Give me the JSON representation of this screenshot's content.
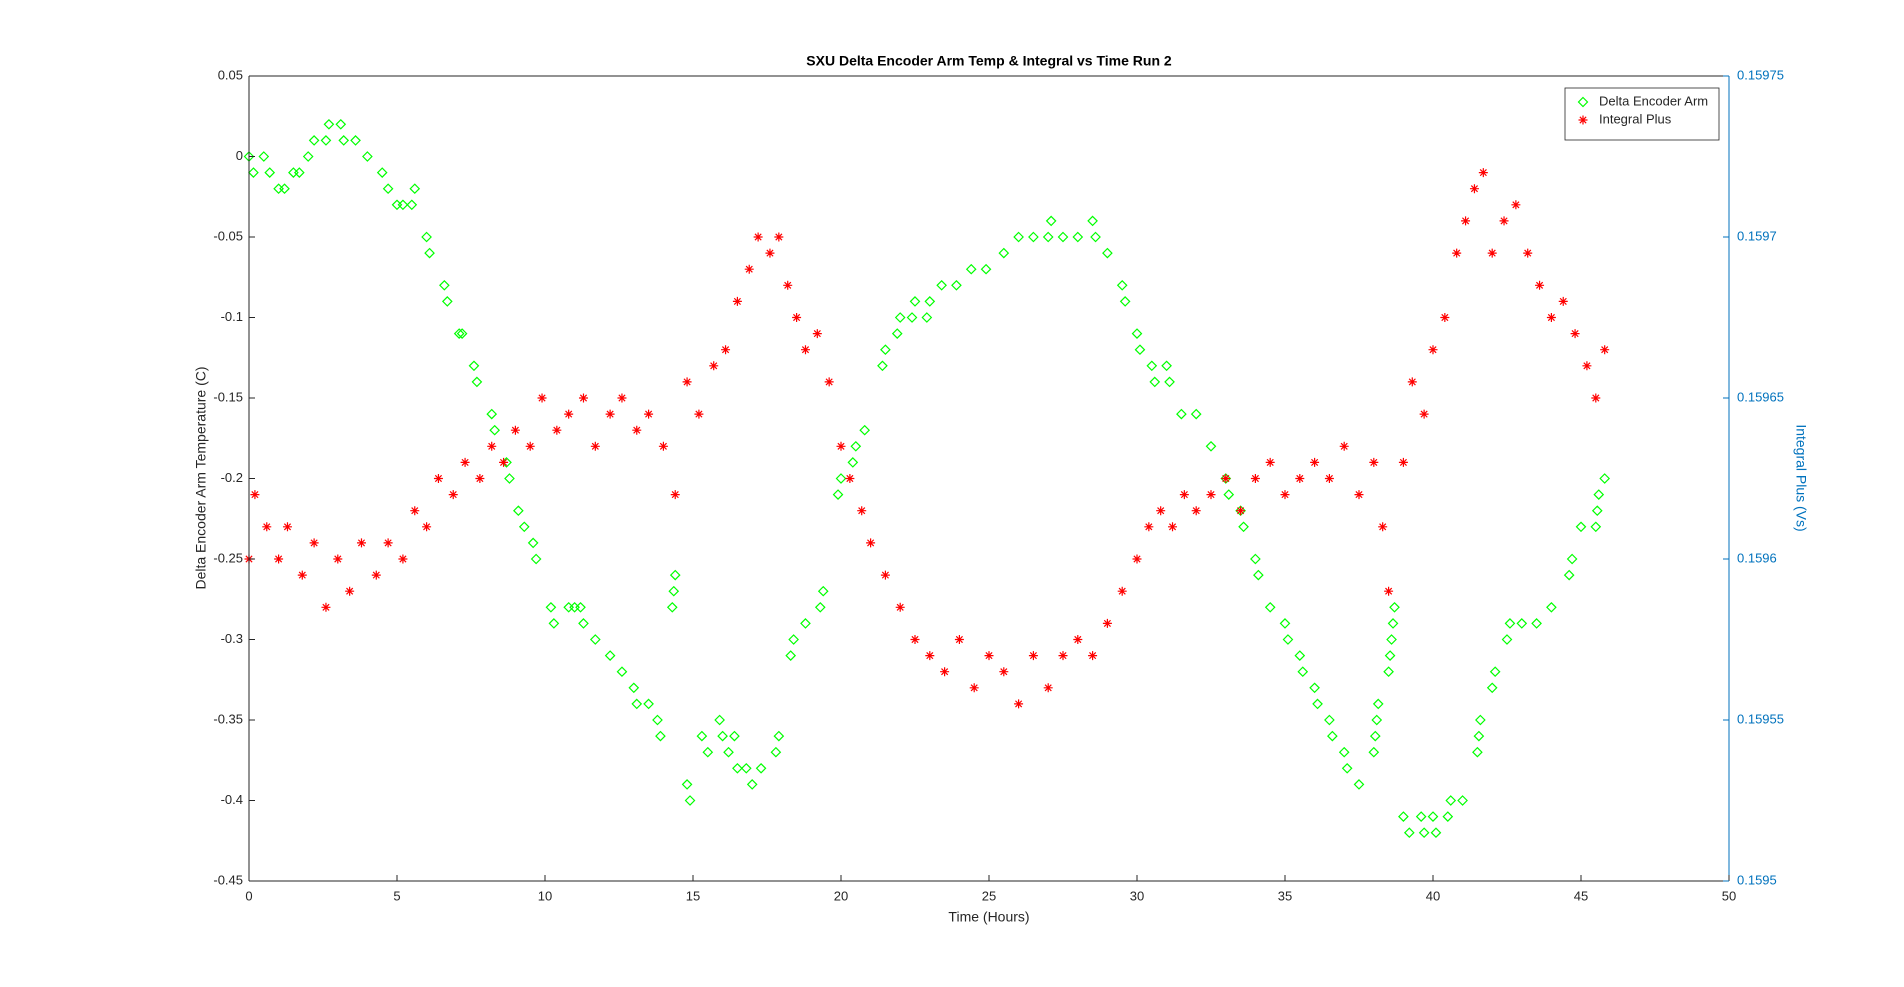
{
  "chart_data": {
    "type": "scatter",
    "title": "SXU Delta Encoder Arm Temp & Integral vs Time Run 2",
    "x_label": "Time (Hours)",
    "y_label": "Delta Encoder Arm Temperature (C)",
    "y2_label": "Integral Plus (Vs)",
    "xlim": [
      0,
      50
    ],
    "xticks": [
      0,
      5,
      10,
      15,
      20,
      25,
      30,
      35,
      40,
      45,
      50
    ],
    "ylim": [
      -0.45,
      0.05
    ],
    "yticks": [
      -0.45,
      -0.4,
      -0.35,
      -0.3,
      -0.25,
      -0.2,
      -0.15,
      -0.1,
      -0.05,
      0,
      0.05
    ],
    "y2lim": [
      0.1595,
      0.15975
    ],
    "y2ticks": [
      0.1595,
      0.15955,
      0.1596,
      0.15965,
      0.1597,
      0.15975
    ],
    "y2_color": "#0072bd",
    "legend": "northeast",
    "series": [
      {
        "name": "Delta Encoder Arm",
        "color": "#00ff00",
        "marker": "diamond",
        "x": [
          0,
          0.15,
          0.5,
          0.7,
          1,
          1.2,
          1.5,
          1.7,
          2,
          2.2,
          2.6,
          2.7,
          3.1,
          3.2,
          3.6,
          4,
          4.5,
          4.7,
          5,
          5.2,
          5.5,
          5.6,
          6,
          6.1,
          6.6,
          6.7,
          7.1,
          7.2,
          7.6,
          7.7,
          8.2,
          8.3,
          8.7,
          8.8,
          9.1,
          9.3,
          9.6,
          9.7,
          10.2,
          10.3,
          10.8,
          11,
          11.2,
          11.3,
          11.7,
          12.2,
          12.6,
          13,
          13.1,
          13.5,
          13.8,
          13.9,
          14.3,
          14.35,
          14.4,
          14.8,
          14.9,
          15.3,
          15.5,
          15.9,
          16,
          16.2,
          16.4,
          16.5,
          16.8,
          17,
          17.3,
          17.8,
          17.9,
          18.3,
          18.4,
          18.8,
          19.3,
          19.4,
          19.9,
          20,
          20.4,
          20.5,
          20.8,
          21.4,
          21.5,
          21.9,
          22,
          22.4,
          22.5,
          22.9,
          23,
          23.4,
          23.9,
          24.4,
          24.9,
          25.5,
          26,
          26.5,
          27,
          27.1,
          27.5,
          28,
          28.5,
          28.6,
          29,
          29.5,
          29.6,
          30,
          30.1,
          30.5,
          30.6,
          31,
          31.1,
          31.5,
          32,
          32.5,
          33,
          33.1,
          33.5,
          33.6,
          34,
          34.1,
          34.5,
          35,
          35.1,
          35.5,
          35.6,
          36,
          36.1,
          36.5,
          36.6,
          37,
          37.1,
          37.5,
          38,
          38.05,
          38.1,
          38.15,
          38.5,
          38.55,
          38.6,
          38.65,
          38.7,
          39,
          39.2,
          39.6,
          39.7,
          40,
          40.1,
          40.5,
          40.6,
          41,
          41.5,
          41.55,
          41.6,
          42,
          42.1,
          42.5,
          42.6,
          43,
          43.5,
          44,
          44.6,
          44.7,
          45,
          45.5,
          45.55,
          45.6,
          45.8
        ],
        "values": [
          0,
          -0.01,
          0,
          -0.01,
          -0.02,
          -0.02,
          -0.01,
          -0.01,
          0,
          0.01,
          0.01,
          0.02,
          0.02,
          0.01,
          0.01,
          0,
          -0.01,
          -0.02,
          -0.03,
          -0.03,
          -0.03,
          -0.02,
          -0.05,
          -0.06,
          -0.08,
          -0.09,
          -0.11,
          -0.11,
          -0.13,
          -0.14,
          -0.16,
          -0.17,
          -0.19,
          -0.2,
          -0.22,
          -0.23,
          -0.24,
          -0.25,
          -0.28,
          -0.29,
          -0.28,
          -0.28,
          -0.28,
          -0.29,
          -0.3,
          -0.31,
          -0.32,
          -0.33,
          -0.34,
          -0.34,
          -0.35,
          -0.36,
          -0.28,
          -0.27,
          -0.26,
          -0.39,
          -0.4,
          -0.36,
          -0.37,
          -0.35,
          -0.36,
          -0.37,
          -0.36,
          -0.38,
          -0.38,
          -0.39,
          -0.38,
          -0.37,
          -0.36,
          -0.31,
          -0.3,
          -0.29,
          -0.28,
          -0.27,
          -0.21,
          -0.2,
          -0.19,
          -0.18,
          -0.17,
          -0.13,
          -0.12,
          -0.11,
          -0.1,
          -0.1,
          -0.09,
          -0.1,
          -0.09,
          -0.08,
          -0.08,
          -0.07,
          -0.07,
          -0.06,
          -0.05,
          -0.05,
          -0.05,
          -0.04,
          -0.05,
          -0.05,
          -0.04,
          -0.05,
          -0.06,
          -0.08,
          -0.09,
          -0.11,
          -0.12,
          -0.13,
          -0.14,
          -0.13,
          -0.14,
          -0.16,
          -0.16,
          -0.18,
          -0.2,
          -0.21,
          -0.22,
          -0.23,
          -0.25,
          -0.26,
          -0.28,
          -0.29,
          -0.3,
          -0.31,
          -0.32,
          -0.33,
          -0.34,
          -0.35,
          -0.36,
          -0.37,
          -0.38,
          -0.39,
          -0.37,
          -0.36,
          -0.35,
          -0.34,
          -0.32,
          -0.31,
          -0.3,
          -0.29,
          -0.28,
          -0.41,
          -0.42,
          -0.41,
          -0.42,
          -0.41,
          -0.42,
          -0.41,
          -0.4,
          -0.4,
          -0.37,
          -0.36,
          -0.35,
          -0.33,
          -0.32,
          -0.3,
          -0.29,
          -0.29,
          -0.29,
          -0.28,
          -0.26,
          -0.25,
          -0.23,
          -0.23,
          -0.22,
          -0.21,
          -0.2
        ]
      },
      {
        "name": "Integral Plus",
        "color": "#ff0000",
        "marker": "asterisk",
        "axis": "y2",
        "x": [
          0,
          0.2,
          0.6,
          1,
          1.3,
          1.8,
          2.2,
          2.6,
          3,
          3.4,
          3.8,
          4.3,
          4.7,
          5.2,
          5.6,
          6,
          6.4,
          6.9,
          7.3,
          7.8,
          8.2,
          8.6,
          9,
          9.5,
          9.9,
          10.4,
          10.8,
          11.3,
          11.7,
          12.2,
          12.6,
          13.1,
          13.5,
          14,
          14.4,
          14.8,
          15.2,
          15.7,
          16.1,
          16.5,
          16.9,
          17.2,
          17.6,
          17.9,
          18.2,
          18.5,
          18.8,
          19.2,
          19.6,
          20,
          20.3,
          20.7,
          21,
          21.5,
          22,
          22.5,
          23,
          23.5,
          24,
          24.5,
          25,
          25.5,
          26,
          26.5,
          27,
          27.5,
          28,
          28.5,
          29,
          29.5,
          30,
          30.4,
          30.8,
          31.2,
          31.6,
          32,
          32.5,
          33,
          33.5,
          34,
          34.5,
          35,
          35.5,
          36,
          36.5,
          37,
          37.5,
          38,
          38.3,
          38.5,
          39,
          39.3,
          39.7,
          40,
          40.4,
          40.8,
          41.1,
          41.4,
          41.7,
          42,
          42.4,
          42.8,
          43.2,
          43.6,
          44,
          44.4,
          44.8,
          45.2,
          45.5,
          45.8
        ],
        "values": [
          0.1596,
          0.15962,
          0.15961,
          0.1596,
          0.15961,
          0.159595,
          0.159605,
          0.159585,
          0.1596,
          0.15959,
          0.159605,
          0.159595,
          0.159605,
          0.1596,
          0.159615,
          0.15961,
          0.159625,
          0.15962,
          0.15963,
          0.159625,
          0.159635,
          0.15963,
          0.15964,
          0.159635,
          0.15965,
          0.15964,
          0.159645,
          0.15965,
          0.159635,
          0.159645,
          0.15965,
          0.15964,
          0.159645,
          0.159635,
          0.15962,
          0.159655,
          0.159645,
          0.15966,
          0.159665,
          0.15968,
          0.15969,
          0.1597,
          0.159695,
          0.1597,
          0.159685,
          0.159675,
          0.159665,
          0.15967,
          0.159655,
          0.159635,
          0.159625,
          0.159615,
          0.159605,
          0.159595,
          0.159585,
          0.159575,
          0.15957,
          0.159565,
          0.159575,
          0.15956,
          0.15957,
          0.159565,
          0.159555,
          0.15957,
          0.15956,
          0.15957,
          0.159575,
          0.15957,
          0.15958,
          0.15959,
          0.1596,
          0.15961,
          0.159615,
          0.15961,
          0.15962,
          0.159615,
          0.15962,
          0.159625,
          0.159615,
          0.159625,
          0.15963,
          0.15962,
          0.159625,
          0.15963,
          0.159625,
          0.159635,
          0.15962,
          0.15963,
          0.15961,
          0.15959,
          0.15963,
          0.159655,
          0.159645,
          0.159665,
          0.159675,
          0.159695,
          0.159705,
          0.159715,
          0.15972,
          0.159695,
          0.159705,
          0.15971,
          0.159695,
          0.159685,
          0.159675,
          0.15968,
          0.15967,
          0.15966,
          0.15965,
          0.159665
        ]
      }
    ]
  }
}
